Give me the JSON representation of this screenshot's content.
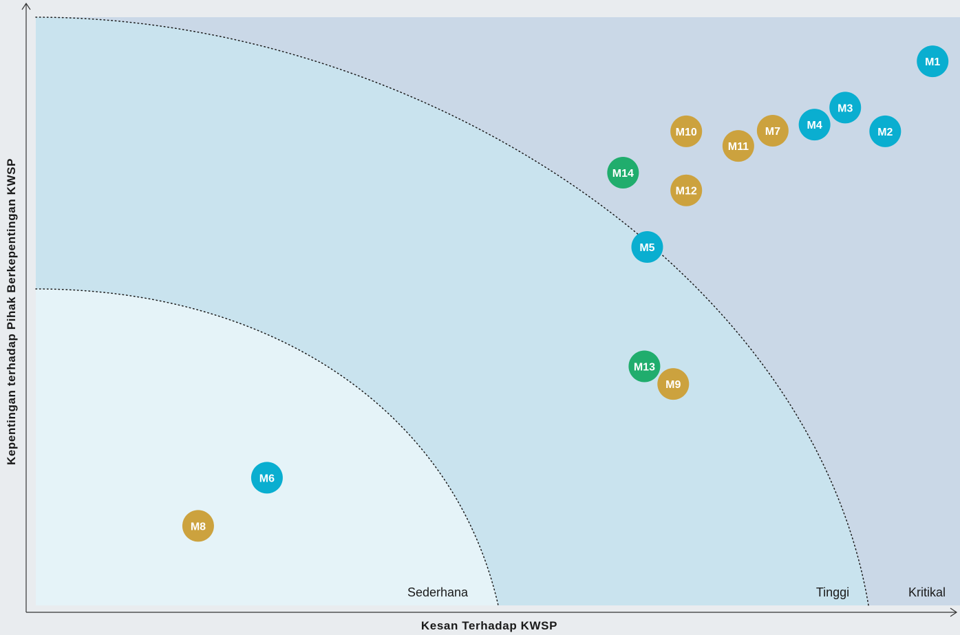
{
  "chart_data": {
    "type": "scatter",
    "xlabel": "Kesan Terhadap KWSP",
    "ylabel": "Kepentingan terhadap Pihak Berkepentingan KWSP",
    "xlim": [
      0,
      100
    ],
    "ylim": [
      0,
      100
    ],
    "grid": false,
    "zones": [
      {
        "name": "Sederhana",
        "color": "#e5f3f8"
      },
      {
        "name": "Tinggi",
        "color": "#c9e3ee"
      },
      {
        "name": "Kritikal",
        "color": "#cad8e7"
      }
    ],
    "category_colors": {
      "blue": "#0aaed0",
      "gold": "#cca23e",
      "green": "#20ad6d"
    },
    "points": [
      {
        "label": "M1",
        "x": 97.5,
        "y": 90.5,
        "category": "blue"
      },
      {
        "label": "M2",
        "x": 92.4,
        "y": 79.0,
        "category": "blue"
      },
      {
        "label": "M3",
        "x": 88.1,
        "y": 82.9,
        "category": "blue"
      },
      {
        "label": "M4",
        "x": 84.8,
        "y": 80.1,
        "category": "blue"
      },
      {
        "label": "M5",
        "x": 66.8,
        "y": 60.0,
        "category": "blue"
      },
      {
        "label": "M6",
        "x": 25.9,
        "y": 22.1,
        "category": "blue"
      },
      {
        "label": "M7",
        "x": 80.3,
        "y": 79.1,
        "category": "gold"
      },
      {
        "label": "M8",
        "x": 18.5,
        "y": 14.2,
        "category": "gold"
      },
      {
        "label": "M9",
        "x": 69.6,
        "y": 37.5,
        "category": "gold"
      },
      {
        "label": "M10",
        "x": 71.0,
        "y": 79.0,
        "category": "gold"
      },
      {
        "label": "M11",
        "x": 76.6,
        "y": 76.6,
        "category": "gold"
      },
      {
        "label": "M12",
        "x": 71.0,
        "y": 69.3,
        "category": "gold"
      },
      {
        "label": "M13",
        "x": 66.5,
        "y": 40.4,
        "category": "green"
      },
      {
        "label": "M14",
        "x": 64.2,
        "y": 72.2,
        "category": "green"
      }
    ]
  }
}
